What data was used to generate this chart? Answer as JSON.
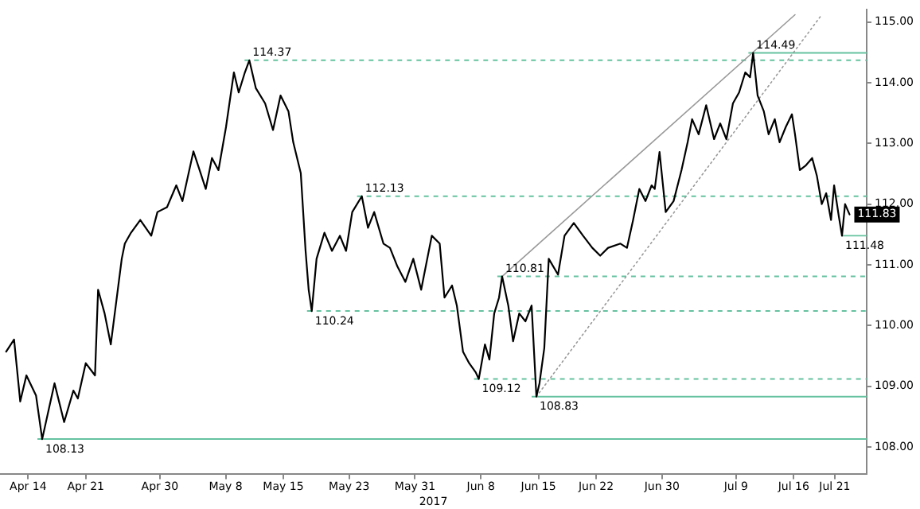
{
  "chart_data": {
    "type": "line",
    "xlabel": "2017",
    "legend": false,
    "grid": false,
    "marker": "none",
    "xlim": [
      "2017-04-10T14:00",
      "2017-07-24T21:00"
    ],
    "xticks": [
      {
        "value": "2017-04-14",
        "label": "Apr 14"
      },
      {
        "value": "2017-04-21",
        "label": "Apr 21"
      },
      {
        "value": "2017-04-30",
        "label": "Apr 30"
      },
      {
        "value": "2017-05-08",
        "label": "May 8"
      },
      {
        "value": "2017-05-15",
        "label": "May 15"
      },
      {
        "value": "2017-05-23",
        "label": "May 23"
      },
      {
        "value": "2017-05-31",
        "label": "May 31"
      },
      {
        "value": "2017-06-08",
        "label": "Jun 8"
      },
      {
        "value": "2017-06-15",
        "label": "Jun 15"
      },
      {
        "value": "2017-06-22",
        "label": "Jun 22"
      },
      {
        "value": "2017-06-30",
        "label": "Jun 30"
      },
      {
        "value": "2017-07-09",
        "label": "Jul 9"
      },
      {
        "value": "2017-07-16",
        "label": "Jul 16"
      },
      {
        "value": "2017-07-21",
        "label": "Jul 21"
      }
    ],
    "ylim": [
      107.55,
      115.2
    ],
    "yticks": [
      {
        "value": 108,
        "label": "108.00"
      },
      {
        "value": 109,
        "label": "109.00"
      },
      {
        "value": 110,
        "label": "110.00"
      },
      {
        "value": 111,
        "label": "111.00"
      },
      {
        "value": 112,
        "label": "112.00"
      },
      {
        "value": 113,
        "label": "113.00"
      },
      {
        "value": 114,
        "label": "114.00"
      },
      {
        "value": 115,
        "label": "115.00"
      }
    ],
    "series": [
      {
        "type": "line",
        "color": "#000000",
        "line_style": "solid",
        "x": [
          "2017-04-11T08:00",
          "2017-04-12T07:00",
          "2017-04-13T01:00",
          "2017-04-13T19:00",
          "2017-04-14T23:00",
          "2017-04-15T17:00",
          "2017-04-17T05:00",
          "2017-04-18T09:00",
          "2017-04-19T12:00",
          "2017-04-20T01:00",
          "2017-04-21T00:00",
          "2017-04-22T03:00",
          "2017-04-22T12:00",
          "2017-04-23T07:00",
          "2017-04-24T01:00",
          "2017-04-25T09:00",
          "2017-04-25T18:00",
          "2017-04-26T12:00",
          "2017-04-27T15:00",
          "2017-04-28T23:00",
          "2017-04-29T17:00",
          "2017-04-30T21:00",
          "2017-05-02T00:00",
          "2017-05-02T18:00",
          "2017-05-04T02:00",
          "2017-05-04T20:00",
          "2017-05-05T14:00",
          "2017-05-06T08:00",
          "2017-05-07T03:00",
          "2017-05-08T01:00",
          "2017-05-09T00:00",
          "2017-05-09T14:00",
          "2017-05-10T08:00",
          "2017-05-10T21:00",
          "2017-05-11T16:00",
          "2017-05-12T19:00",
          "2017-05-13T18:00",
          "2017-05-14T16:00",
          "2017-05-15T15:00",
          "2017-05-16T05:00",
          "2017-05-17T03:00",
          "2017-05-17T17:00",
          "2017-05-18T02:00",
          "2017-05-18T11:00",
          "2017-05-19T01:00",
          "2017-05-20T00:00",
          "2017-05-20T22:00",
          "2017-05-21T21:00",
          "2017-05-22T15:00",
          "2017-05-23T09:00",
          "2017-05-24T13:00",
          "2017-05-25T07:00",
          "2017-05-26T01:00",
          "2017-05-27T04:00",
          "2017-05-27T23:00",
          "2017-05-28T21:00",
          "2017-05-29T20:00",
          "2017-05-30T19:00",
          "2017-05-31T18:00",
          "2017-06-02T01:00",
          "2017-06-03T00:00",
          "2017-06-03T14:00",
          "2017-06-04T12:00",
          "2017-06-05T02:00",
          "2017-06-05T20:00",
          "2017-06-06T14:00",
          "2017-06-07T09:00",
          "2017-06-07T18:00",
          "2017-06-08T12:00",
          "2017-06-09T01:00",
          "2017-06-09T15:00",
          "2017-06-10T05:00",
          "2017-06-10T14:00",
          "2017-06-11T08:00",
          "2017-06-11T22:00",
          "2017-06-12T16:00",
          "2017-06-13T10:00",
          "2017-06-14T04:00",
          "2017-06-14T18:00",
          "2017-06-15T03:00",
          "2017-06-15T17:00",
          "2017-06-16T06:00",
          "2017-06-17T09:00",
          "2017-06-18T04:00",
          "2017-06-19T07:00",
          "2017-06-20T10:00",
          "2017-06-21T13:00",
          "2017-06-22T12:00",
          "2017-06-23T11:00",
          "2017-06-24T23:00",
          "2017-06-25T18:00",
          "2017-06-26T12:00",
          "2017-06-27T06:00",
          "2017-06-28T00:00",
          "2017-06-28T18:00",
          "2017-06-29T03:00",
          "2017-06-29T17:00",
          "2017-06-30T11:00",
          "2017-07-01T10:00",
          "2017-07-02T09:00",
          "2017-07-03T03:00",
          "2017-07-03T16:00",
          "2017-07-04T11:00",
          "2017-07-05T09:00",
          "2017-07-06T08:00",
          "2017-07-07T02:00",
          "2017-07-07T20:00",
          "2017-07-08T15:00",
          "2017-07-09T09:00",
          "2017-07-10T03:00",
          "2017-07-10T17:00",
          "2017-07-11T02:00",
          "2017-07-11T15:00",
          "2017-07-12T09:00",
          "2017-07-12T23:00",
          "2017-07-13T17:00",
          "2017-07-14T07:00",
          "2017-07-15T01:00",
          "2017-07-15T19:00",
          "2017-07-16T04:00",
          "2017-07-16T18:00",
          "2017-07-17T12:00",
          "2017-07-18T06:00",
          "2017-07-18T20:00",
          "2017-07-19T10:00",
          "2017-07-19T23:00",
          "2017-07-20T13:00",
          "2017-07-20T22:00",
          "2017-07-21T12:00",
          "2017-07-21T21:00",
          "2017-07-22T06:00",
          "2017-07-22T19:00"
        ],
        "values": [
          109.57,
          109.77,
          108.75,
          109.18,
          108.85,
          108.13,
          109.05,
          108.41,
          108.93,
          108.8,
          109.38,
          109.18,
          110.59,
          110.2,
          109.69,
          111.1,
          111.35,
          111.53,
          111.74,
          111.48,
          111.87,
          111.95,
          112.31,
          112.05,
          112.87,
          112.56,
          112.25,
          112.76,
          112.56,
          113.27,
          114.17,
          113.84,
          114.17,
          114.37,
          113.91,
          113.66,
          113.22,
          113.79,
          113.53,
          113.02,
          112.51,
          111.23,
          110.59,
          110.24,
          111.1,
          111.53,
          111.23,
          111.48,
          111.23,
          111.87,
          112.13,
          111.61,
          111.87,
          111.35,
          111.28,
          110.97,
          110.72,
          111.1,
          110.59,
          111.48,
          111.35,
          110.46,
          110.66,
          110.33,
          109.57,
          109.38,
          109.23,
          109.12,
          109.69,
          109.44,
          110.2,
          110.46,
          110.81,
          110.33,
          109.74,
          110.2,
          110.07,
          110.33,
          108.83,
          109.05,
          109.63,
          111.1,
          110.84,
          111.48,
          111.69,
          111.48,
          111.28,
          111.15,
          111.28,
          111.35,
          111.28,
          111.74,
          112.25,
          112.05,
          112.31,
          112.25,
          112.86,
          111.87,
          112.05,
          112.56,
          113.02,
          113.4,
          113.15,
          113.63,
          113.07,
          113.33,
          113.07,
          113.66,
          113.84,
          114.17,
          114.09,
          114.49,
          113.79,
          113.53,
          113.15,
          113.4,
          113.02,
          113.27,
          113.48,
          113.15,
          112.56,
          112.64,
          112.76,
          112.46,
          112.0,
          112.18,
          111.74,
          112.31,
          111.79,
          111.48,
          112.0,
          111.83
        ],
        "value_labels": [
          null,
          null,
          null,
          null,
          null,
          null,
          null,
          null,
          null,
          null,
          null,
          null,
          null,
          null,
          null,
          null,
          null,
          null,
          null,
          null,
          null,
          null,
          null,
          null,
          null,
          null,
          null,
          null,
          null,
          null,
          null,
          null,
          null,
          null,
          null,
          null,
          null,
          null,
          null,
          null,
          null,
          null,
          null,
          null,
          null,
          null,
          null,
          null,
          null,
          null,
          null,
          null,
          null,
          null,
          null,
          null,
          null,
          null,
          null,
          null,
          null,
          null,
          null,
          null,
          null,
          null,
          null,
          null,
          null,
          null,
          null,
          null,
          null,
          null,
          null,
          null,
          null,
          null,
          null,
          null,
          null,
          null,
          null,
          null,
          null,
          null,
          null,
          null,
          null,
          null,
          null,
          null,
          null,
          null,
          null,
          null,
          null,
          null,
          null,
          null,
          null,
          null,
          null,
          null,
          null,
          null,
          null,
          null,
          null,
          null,
          null,
          null,
          null,
          null,
          null,
          null,
          null,
          null,
          null,
          null,
          null,
          null,
          null,
          null,
          null,
          null,
          null,
          null,
          null,
          null,
          null,
          "111.83"
        ]
      },
      {
        "type": "line",
        "color": "#999999",
        "line_style": "solid",
        "x": [
          "2017-06-10T14:00",
          "2017-07-16T04:00"
        ],
        "values": [
          110.81,
          115.12
        ]
      },
      {
        "type": "line",
        "color": "#999999",
        "line_style": "dotted",
        "x": [
          "2017-06-14T18:00",
          "2017-07-19T10:00"
        ],
        "values": [
          108.83,
          115.12
        ]
      },
      {
        "type": "line",
        "color": "#66c2a0",
        "line_style": "solid",
        "x": [
          "2017-07-21T21:00",
          "2017-07-24T21:00"
        ],
        "values": [
          111.48,
          111.48
        ]
      }
    ],
    "ref_lines": [
      {
        "axis": "y",
        "value": 114.37,
        "color": "#66c2a0",
        "line_style": "dashed"
      },
      {
        "axis": "y",
        "value": 114.49,
        "color": "#66c2a0",
        "line_style": "solid"
      },
      {
        "axis": "y",
        "value": 112.13,
        "color": "#66c2a0",
        "line_style": "dashed"
      },
      {
        "axis": "y",
        "value": 110.81,
        "color": "#66c2a0",
        "line_style": "dashed"
      },
      {
        "axis": "y",
        "value": 110.24,
        "color": "#66c2a0",
        "line_style": "dashed"
      },
      {
        "axis": "y",
        "value": 109.12,
        "color": "#66c2a0",
        "line_style": "dashed"
      },
      {
        "axis": "y",
        "value": 108.83,
        "color": "#66c2a0",
        "line_style": "solid"
      },
      {
        "axis": "y",
        "value": 108.13,
        "color": "#66c2a0",
        "line_style": "solid"
      }
    ],
    "annotations": [
      {
        "text": "108.13",
        "x": "2017-04-15T17:00",
        "y": 108.13
      },
      {
        "text": "114.37",
        "x": "2017-05-10T21:00",
        "y": 114.37
      },
      {
        "text": "110.24",
        "x": "2017-05-18T11:00",
        "y": 110.24
      },
      {
        "text": "112.13",
        "x": "2017-05-24T13:00",
        "y": 112.13
      },
      {
        "text": "109.12",
        "x": "2017-06-07T18:00",
        "y": 109.12
      },
      {
        "text": "110.81",
        "x": "2017-06-10T14:00",
        "y": 110.81
      },
      {
        "text": "108.83",
        "x": "2017-06-14T18:00",
        "y": 108.83
      },
      {
        "text": "114.49",
        "x": "2017-07-11T02:00",
        "y": 114.49
      },
      {
        "text": "111.48",
        "x": "2017-07-21T21:00",
        "y": 111.48
      }
    ]
  }
}
